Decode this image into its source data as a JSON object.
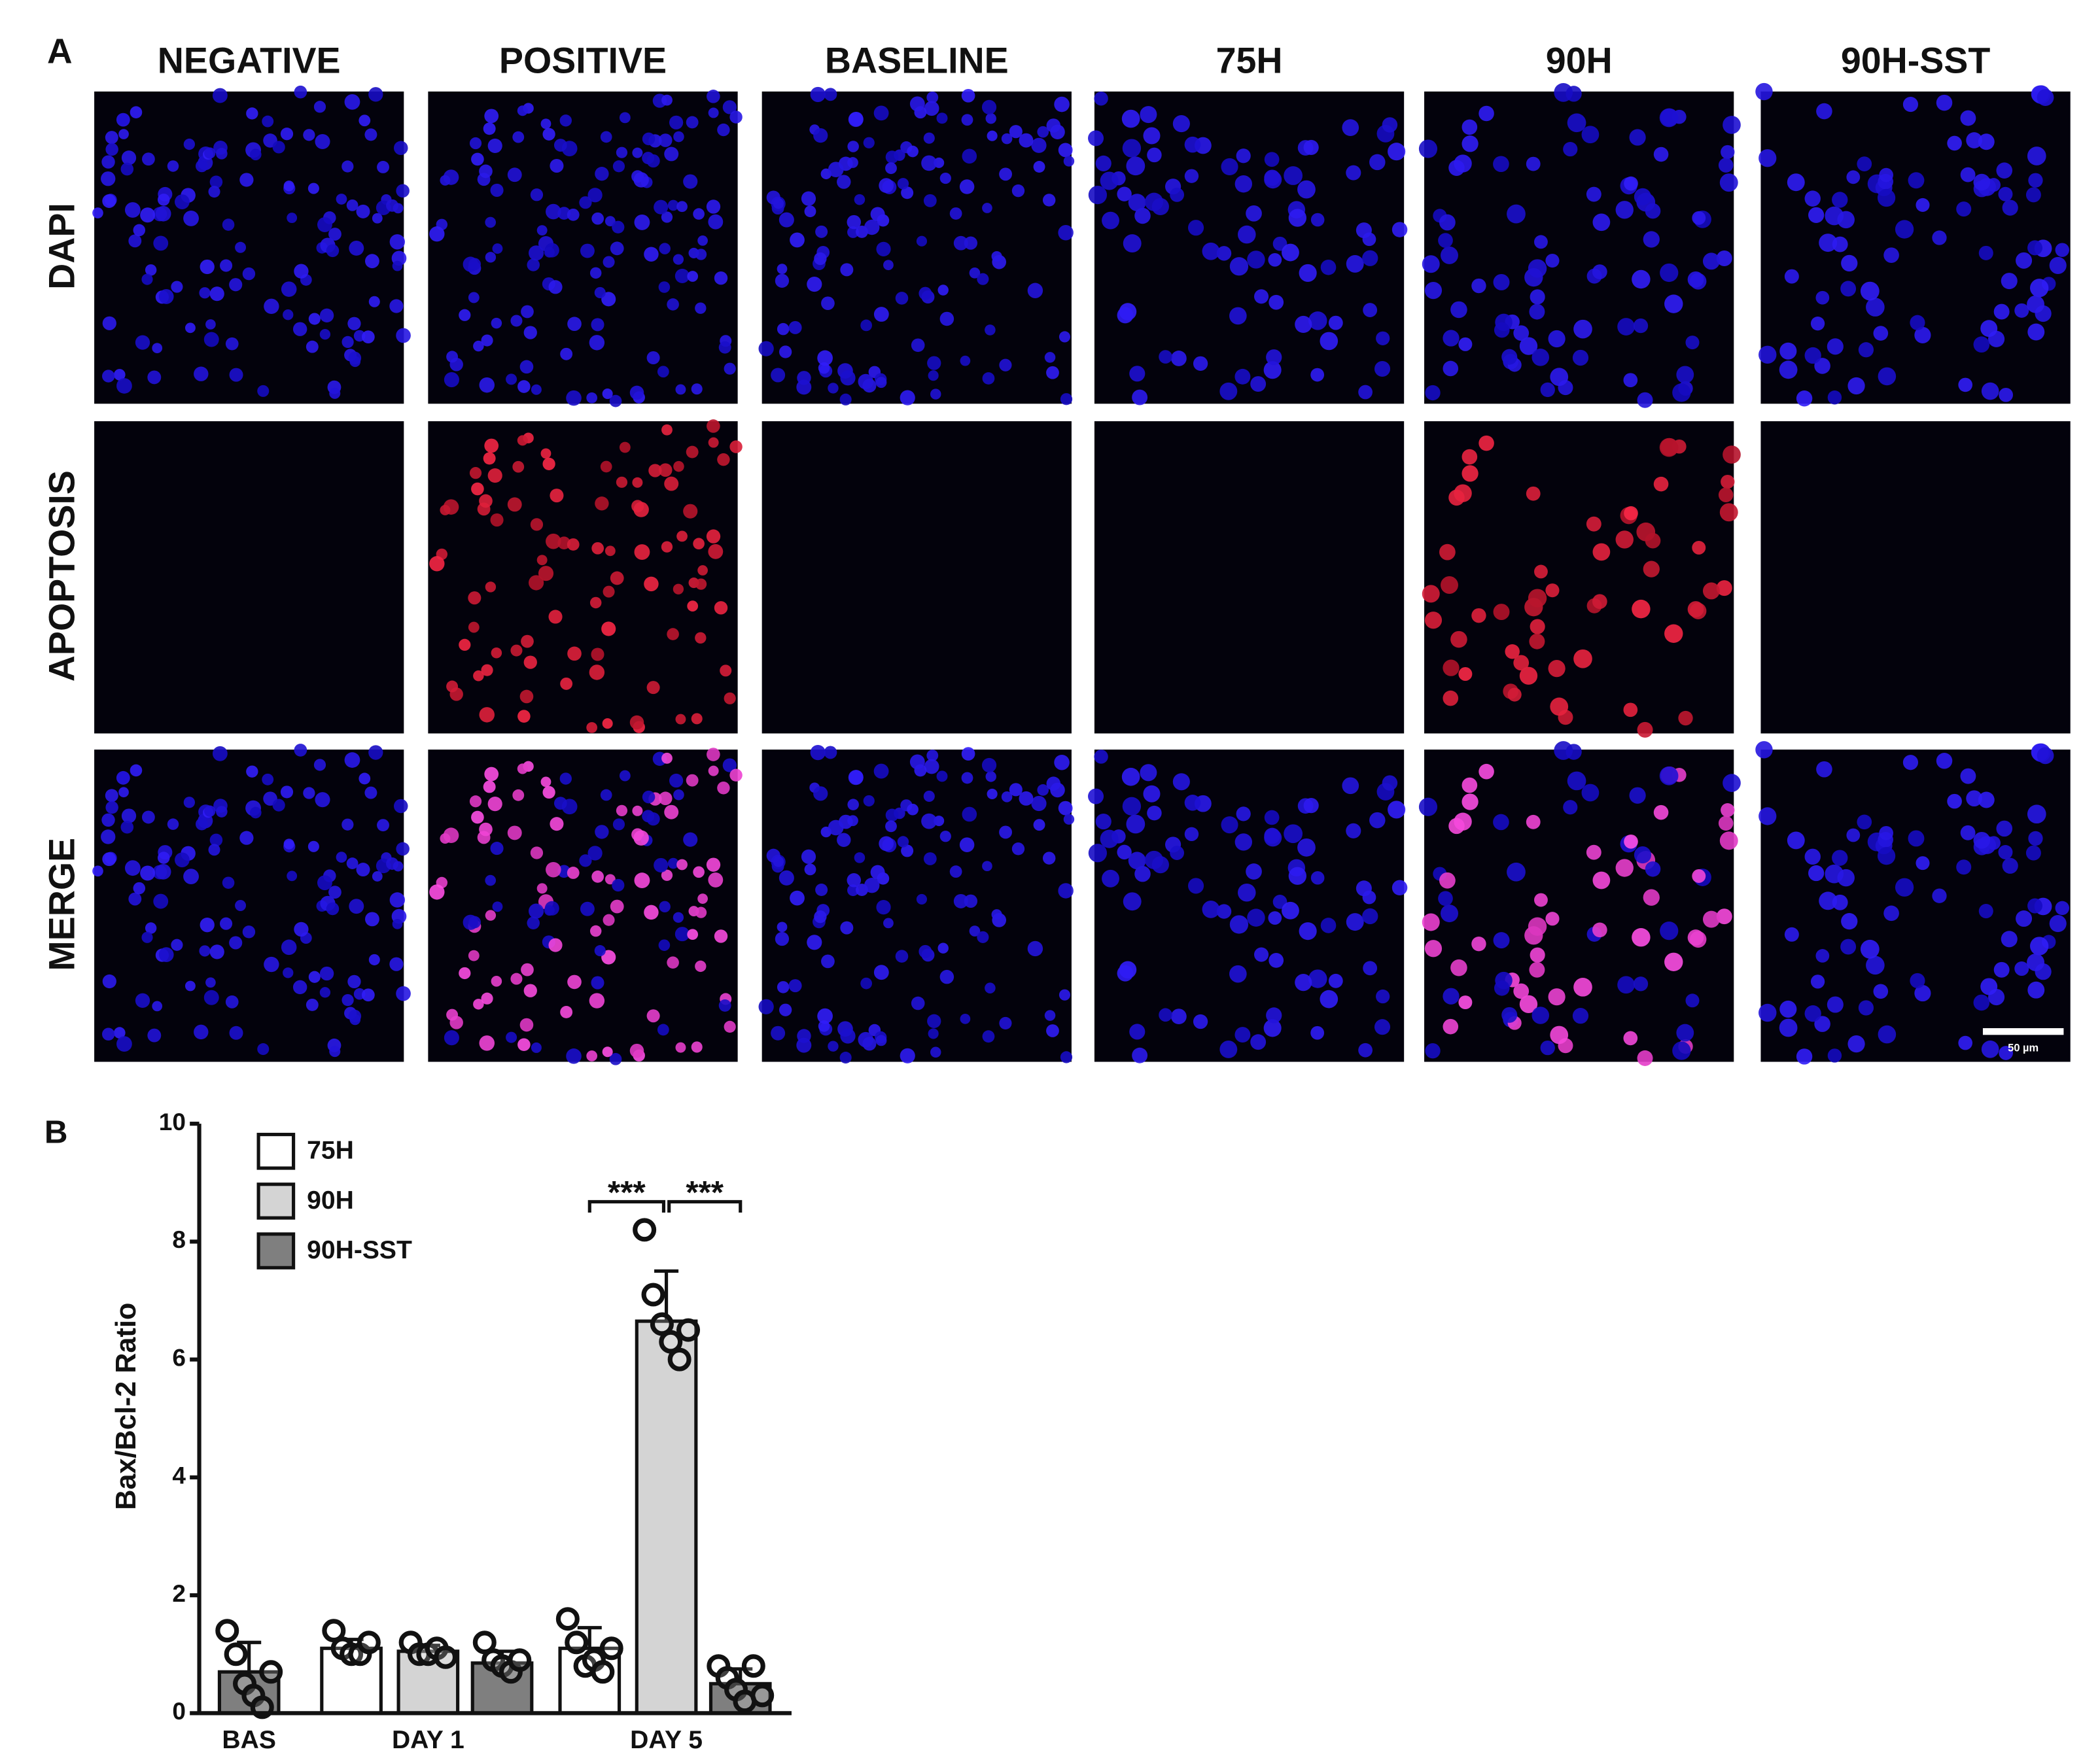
{
  "panel_a": {
    "label": "A",
    "columns": [
      "NEGATIVE",
      "POSITIVE",
      "BASELINE",
      "75H",
      "90H",
      "90H-SST"
    ],
    "rows": [
      "DAPI",
      "APOPTOSIS",
      "MERGE"
    ],
    "scale_bar": "50 µm"
  },
  "chart_data": {
    "type": "bar",
    "panel_label": "B",
    "y_label": "Bax/Bcl-2 Ratio",
    "categories": [
      "BAS",
      "DAY 1",
      "DAY 5"
    ],
    "series": [
      {
        "name": "75H",
        "color": "#ffffff",
        "values": [
          null,
          1.1,
          1.1
        ],
        "errors": [
          null,
          0.15,
          0.35
        ],
        "points": [
          null,
          [
            1.4,
            1.1,
            1.0,
            1.0,
            1.2
          ],
          [
            1.6,
            1.2,
            0.8,
            0.9,
            0.7,
            1.1
          ]
        ]
      },
      {
        "name": "90H",
        "color": "#d4d4d4",
        "values": [
          null,
          1.05,
          6.65
        ],
        "errors": [
          null,
          0.1,
          0.85
        ],
        "points": [
          null,
          [
            1.2,
            1.0,
            1.0,
            1.1,
            0.95
          ],
          [
            8.2,
            7.1,
            6.6,
            6.3,
            6.0,
            6.5
          ]
        ]
      },
      {
        "name": "90H-SST",
        "color": "#7f7f7f",
        "values": [
          0.7,
          0.85,
          0.5
        ],
        "errors": [
          0.5,
          0.2,
          0.25
        ],
        "points": [
          [
            1.4,
            1.0,
            0.5,
            0.3,
            0.1,
            0.7
          ],
          [
            1.2,
            0.9,
            0.8,
            0.7,
            0.9
          ],
          [
            0.8,
            0.6,
            0.4,
            0.2,
            0.8,
            0.3
          ]
        ]
      }
    ],
    "annotations": [
      "***",
      "***"
    ],
    "ylim": [
      0,
      10
    ],
    "yticks": [
      0,
      2,
      4,
      6,
      8,
      10
    ],
    "grid": false,
    "legend": "upper left"
  }
}
